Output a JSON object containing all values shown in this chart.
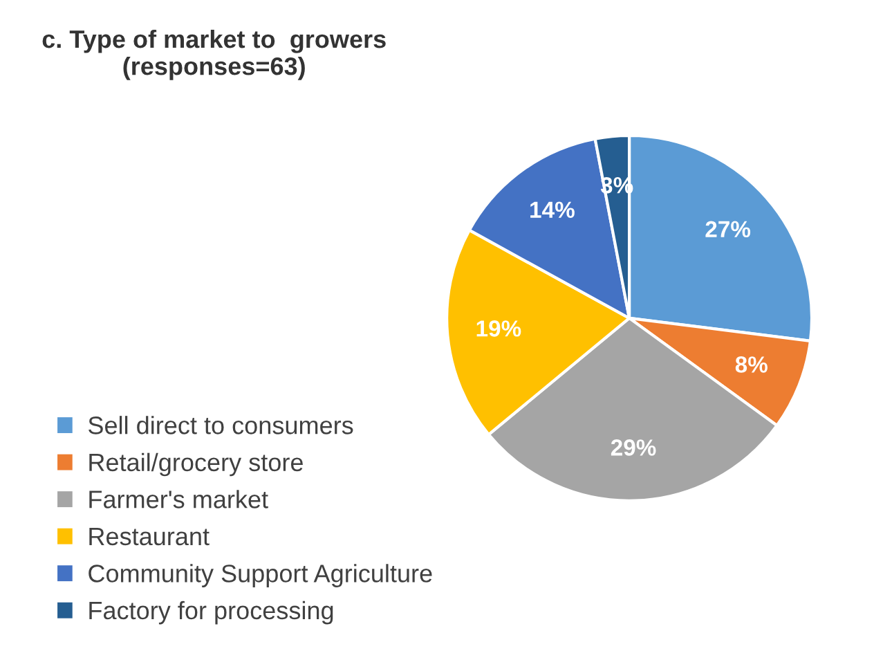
{
  "chart_data": {
    "type": "pie",
    "title": "c. Type of market to  growers\n(responses=63)",
    "categories": [
      "Sell direct to consumers",
      "Retail/grocery store",
      "Farmer's market",
      "Restaurant",
      "Community Support Agriculture",
      "Factory for processing"
    ],
    "values": [
      27,
      8,
      29,
      19,
      14,
      3
    ],
    "colors": [
      "#5b9bd5",
      "#ed7d31",
      "#a5a5a5",
      "#ffc000",
      "#4472c4",
      "#255e91"
    ],
    "value_labels": [
      "27%",
      "8%",
      "29%",
      "19%",
      "14%",
      "3%"
    ],
    "legend": "bottom left"
  }
}
